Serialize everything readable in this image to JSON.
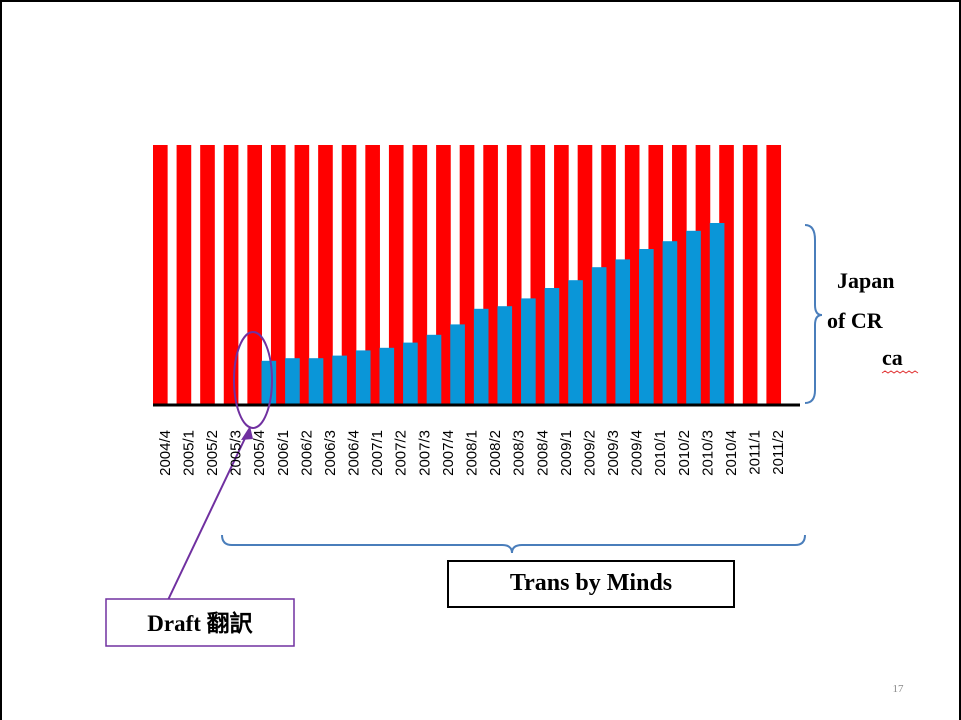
{
  "chart_data": {
    "type": "bar",
    "categories": [
      "2004/4",
      "2005/1",
      "2005/2",
      "2005/3",
      "2005/4",
      "2006/1",
      "2006/2",
      "2006/3",
      "2006/4",
      "2007/1",
      "2007/2",
      "2007/3",
      "2007/4",
      "2008/1",
      "2008/2",
      "2008/3",
      "2008/4",
      "2009/1",
      "2009/2",
      "2009/3",
      "2009/4",
      "2010/1",
      "2010/2",
      "2010/3",
      "2010/4",
      "2011/1",
      "2011/2"
    ],
    "series": [
      {
        "color": "#ff0000",
        "values": [
          100,
          100,
          100,
          100,
          100,
          100,
          100,
          100,
          100,
          100,
          100,
          100,
          100,
          100,
          100,
          100,
          100,
          100,
          100,
          100,
          100,
          100,
          100,
          100,
          100,
          100,
          100
        ]
      },
      {
        "color": "#0a96d8",
        "values": [
          null,
          null,
          null,
          null,
          17,
          18,
          18,
          19,
          21,
          22,
          24,
          27,
          31,
          37,
          38,
          41,
          45,
          48,
          53,
          56,
          60,
          63,
          67,
          70,
          null,
          null,
          null
        ]
      }
    ],
    "ylim": [
      0,
      100
    ],
    "annotations": [
      "Japan",
      "of CR",
      "ca",
      "Trans by Minds",
      "Draft 翻訳"
    ],
    "page_number": "17"
  }
}
